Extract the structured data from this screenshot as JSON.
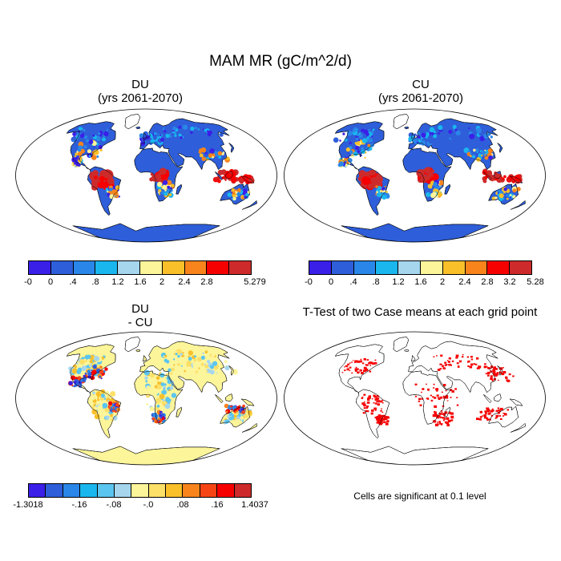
{
  "title": "MAM MR (gC/m^2/d)",
  "panels": {
    "p1": {
      "title_line1": "DU",
      "title_line2": "(yrs 2061-2070)"
    },
    "p2": {
      "title_line1": "CU",
      "title_line2": "(yrs 2061-2070)"
    },
    "p3": {
      "title_line1": "DU",
      "title_line2": "- CU"
    },
    "p4": {
      "title": "T-Test of two Case means at each grid point"
    }
  },
  "colorbars": {
    "abs_colors": [
      "#3a1fe8",
      "#2e5ed9",
      "#2a86e8",
      "#19b7ee",
      "#a5d6ee",
      "#fdf59a",
      "#f9c02a",
      "#f9841c",
      "#f60000",
      "#cd2b2b"
    ],
    "cb1_labels": [
      "-0",
      "0",
      ".4",
      ".8",
      "1.2",
      "1.6",
      "2",
      "2.4",
      "2.8",
      "5.279"
    ],
    "cb2_labels": [
      "-0",
      "0",
      ".4",
      ".8",
      "1.2",
      "1.6",
      "2",
      "2.4",
      "2.8",
      "3.2",
      "5.28"
    ],
    "diff_colors": [
      "#3a1fe8",
      "#2e5ed9",
      "#2a86e8",
      "#19b7ee",
      "#5ac5ef",
      "#a5d6ee",
      "#fdf59a",
      "#fde068",
      "#f9c02a",
      "#f9841c",
      "#f64414",
      "#f60000",
      "#cd2b2b"
    ],
    "cb3_labels": [
      "-1.3018",
      "-.16",
      "-.08",
      "-.0",
      ".08",
      ".16",
      "1.4037"
    ]
  },
  "footnote": "Cells are significant at 0.1 level"
}
